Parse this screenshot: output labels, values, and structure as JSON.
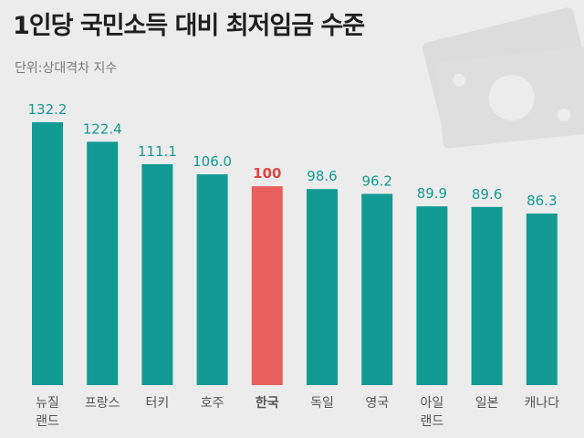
{
  "title": "1인당 국민소득 대비 최저임금 수준",
  "unit_label": "단위:상대격차 지수",
  "colors": {
    "bar": "#129a94",
    "highlight_bar": "#e85f5b",
    "value_text": "#129a94",
    "highlight_text": "#e0463f",
    "background": "#ececec"
  },
  "chart_data": {
    "type": "bar",
    "title": "1인당 국민소득 대비 최저임금 수준",
    "subtitle": "단위:상대격차 지수",
    "categories": [
      [
        "뉴질",
        "랜드"
      ],
      [
        "프랑스"
      ],
      [
        "터키"
      ],
      [
        "호주"
      ],
      [
        "한국"
      ],
      [
        "독일"
      ],
      [
        "영국"
      ],
      [
        "아일",
        "랜드"
      ],
      [
        "일본"
      ],
      [
        "캐나다"
      ]
    ],
    "value_labels": [
      "132.2",
      "122.4",
      "111.1",
      "106.0",
      "100",
      "98.6",
      "96.2",
      "89.9",
      "89.6",
      "86.3"
    ],
    "values": [
      132.2,
      122.4,
      111.1,
      106.0,
      100,
      98.6,
      96.2,
      89.9,
      89.6,
      86.3
    ],
    "highlight_index": 4,
    "ylim": [
      0,
      140
    ],
    "grid": false,
    "legend": "none"
  }
}
